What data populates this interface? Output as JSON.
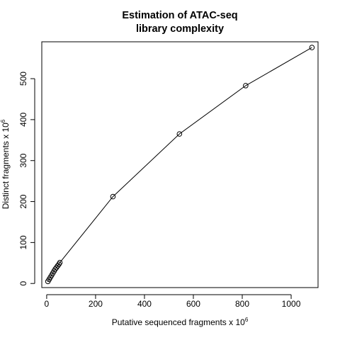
{
  "chart_data": {
    "type": "line",
    "title_lines": [
      "Estimation of ATAC-seq",
      "library complexity"
    ],
    "xlabel": "Putative sequenced fragments x 10",
    "xlabel_exponent": "6",
    "ylabel": "Distinct fragments x 10",
    "ylabel_exponent": "6",
    "xlim": [
      -20,
      1110
    ],
    "ylim": [
      -10,
      590
    ],
    "xticks": [
      0,
      200,
      400,
      600,
      800,
      1000
    ],
    "yticks": [
      0,
      100,
      200,
      300,
      400,
      500
    ],
    "grid": false,
    "legend": "none",
    "line_color": "#000000",
    "series": [
      {
        "x": [
          5,
          10,
          15,
          20,
          25,
          30,
          35,
          40,
          45,
          50,
          54,
          271,
          543,
          814,
          1085
        ],
        "y": [
          5,
          10,
          15,
          20,
          25,
          30,
          35,
          39,
          43,
          47,
          51,
          212,
          365,
          483,
          576
        ]
      }
    ]
  }
}
